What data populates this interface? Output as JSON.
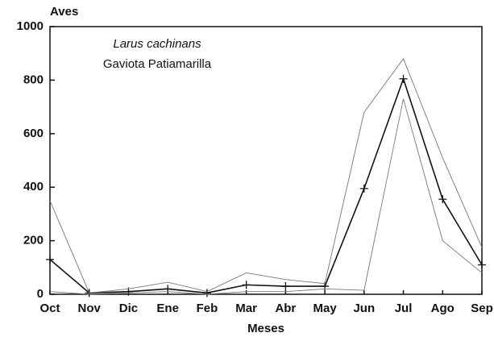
{
  "chart_data": {
    "type": "line",
    "y_label": "Aves",
    "x_label": "Meses",
    "annotations": [
      "Larus cachinans",
      "Gaviota Patiamarilla"
    ],
    "categories": [
      "Oct",
      "Nov",
      "Dic",
      "Ene",
      "Feb",
      "Mar",
      "Abr",
      "May",
      "Jun",
      "Jul",
      "Ago",
      "Sep"
    ],
    "series": [
      {
        "color": "#111111",
        "markers": true,
        "values": [
          130,
          5,
          10,
          20,
          5,
          35,
          30,
          30,
          395,
          805,
          355,
          110
        ]
      },
      {
        "color": "#777777",
        "markers": false,
        "values": [
          350,
          5,
          20,
          45,
          10,
          80,
          55,
          40,
          680,
          880,
          510,
          175
        ]
      },
      {
        "color": "#777777",
        "markers": false,
        "values": [
          10,
          0,
          5,
          10,
          0,
          10,
          10,
          20,
          15,
          730,
          200,
          80
        ]
      }
    ],
    "ylim": [
      0,
      1000
    ],
    "yticks": [
      0,
      200,
      400,
      600,
      800,
      1000
    ],
    "grid": false
  }
}
